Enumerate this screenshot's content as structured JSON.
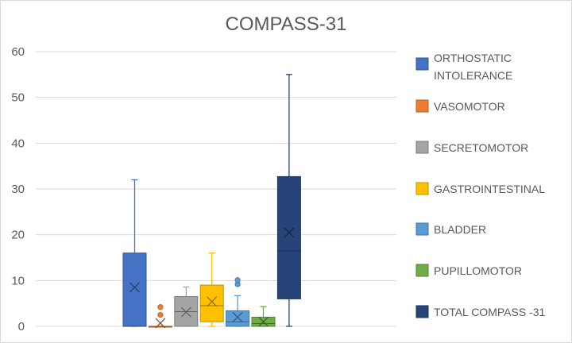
{
  "chart_data": {
    "type": "box",
    "title": "COMPASS-31",
    "xlabel": "",
    "ylabel": "",
    "ylim": [
      0,
      60
    ],
    "yticks": [
      0,
      10,
      20,
      30,
      40,
      50,
      60
    ],
    "grid": true,
    "legend_position": "right",
    "series": [
      {
        "name": "ORTHOSTATIC INTOLERANCE",
        "color": "#4472C4",
        "min": 0,
        "q1": 0,
        "median": 0,
        "q3": 16,
        "max": 32,
        "mean": 8.5,
        "outliers": []
      },
      {
        "name": "VASOMOTOR",
        "color": "#ED7D31",
        "min": 0,
        "q1": 0,
        "median": 0,
        "q3": 0,
        "max": 0,
        "mean": 0.7,
        "outliers": [
          2.5,
          4.2
        ]
      },
      {
        "name": "SECRETOMOTOR",
        "color": "#A5A5A5",
        "min": 0,
        "q1": 0,
        "median": 3.2,
        "q3": 6.5,
        "max": 8.6,
        "mean": 3.1,
        "outliers": []
      },
      {
        "name": "GASTROINTESTINAL",
        "color": "#FFC000",
        "min": 0,
        "q1": 1,
        "median": 4.5,
        "q3": 9,
        "max": 16,
        "mean": 5.4,
        "outliers": []
      },
      {
        "name": "BLADDER",
        "color": "#5B9BD5",
        "min": 0,
        "q1": 0,
        "median": 1,
        "q3": 3.4,
        "max": 6.7,
        "mean": 2,
        "outliers": [
          9.2,
          10.1
        ]
      },
      {
        "name": "PUPILLOMOTOR",
        "color": "#70AD47",
        "min": 0,
        "q1": 0,
        "median": 0.6,
        "q3": 2,
        "max": 4.3,
        "mean": 1,
        "outliers": []
      },
      {
        "name": "TOTAL COMPASS -31",
        "color": "#264478",
        "min": 0,
        "q1": 6,
        "median": 16.5,
        "q3": 32.7,
        "max": 55,
        "mean": 20.5,
        "outliers": []
      }
    ]
  }
}
